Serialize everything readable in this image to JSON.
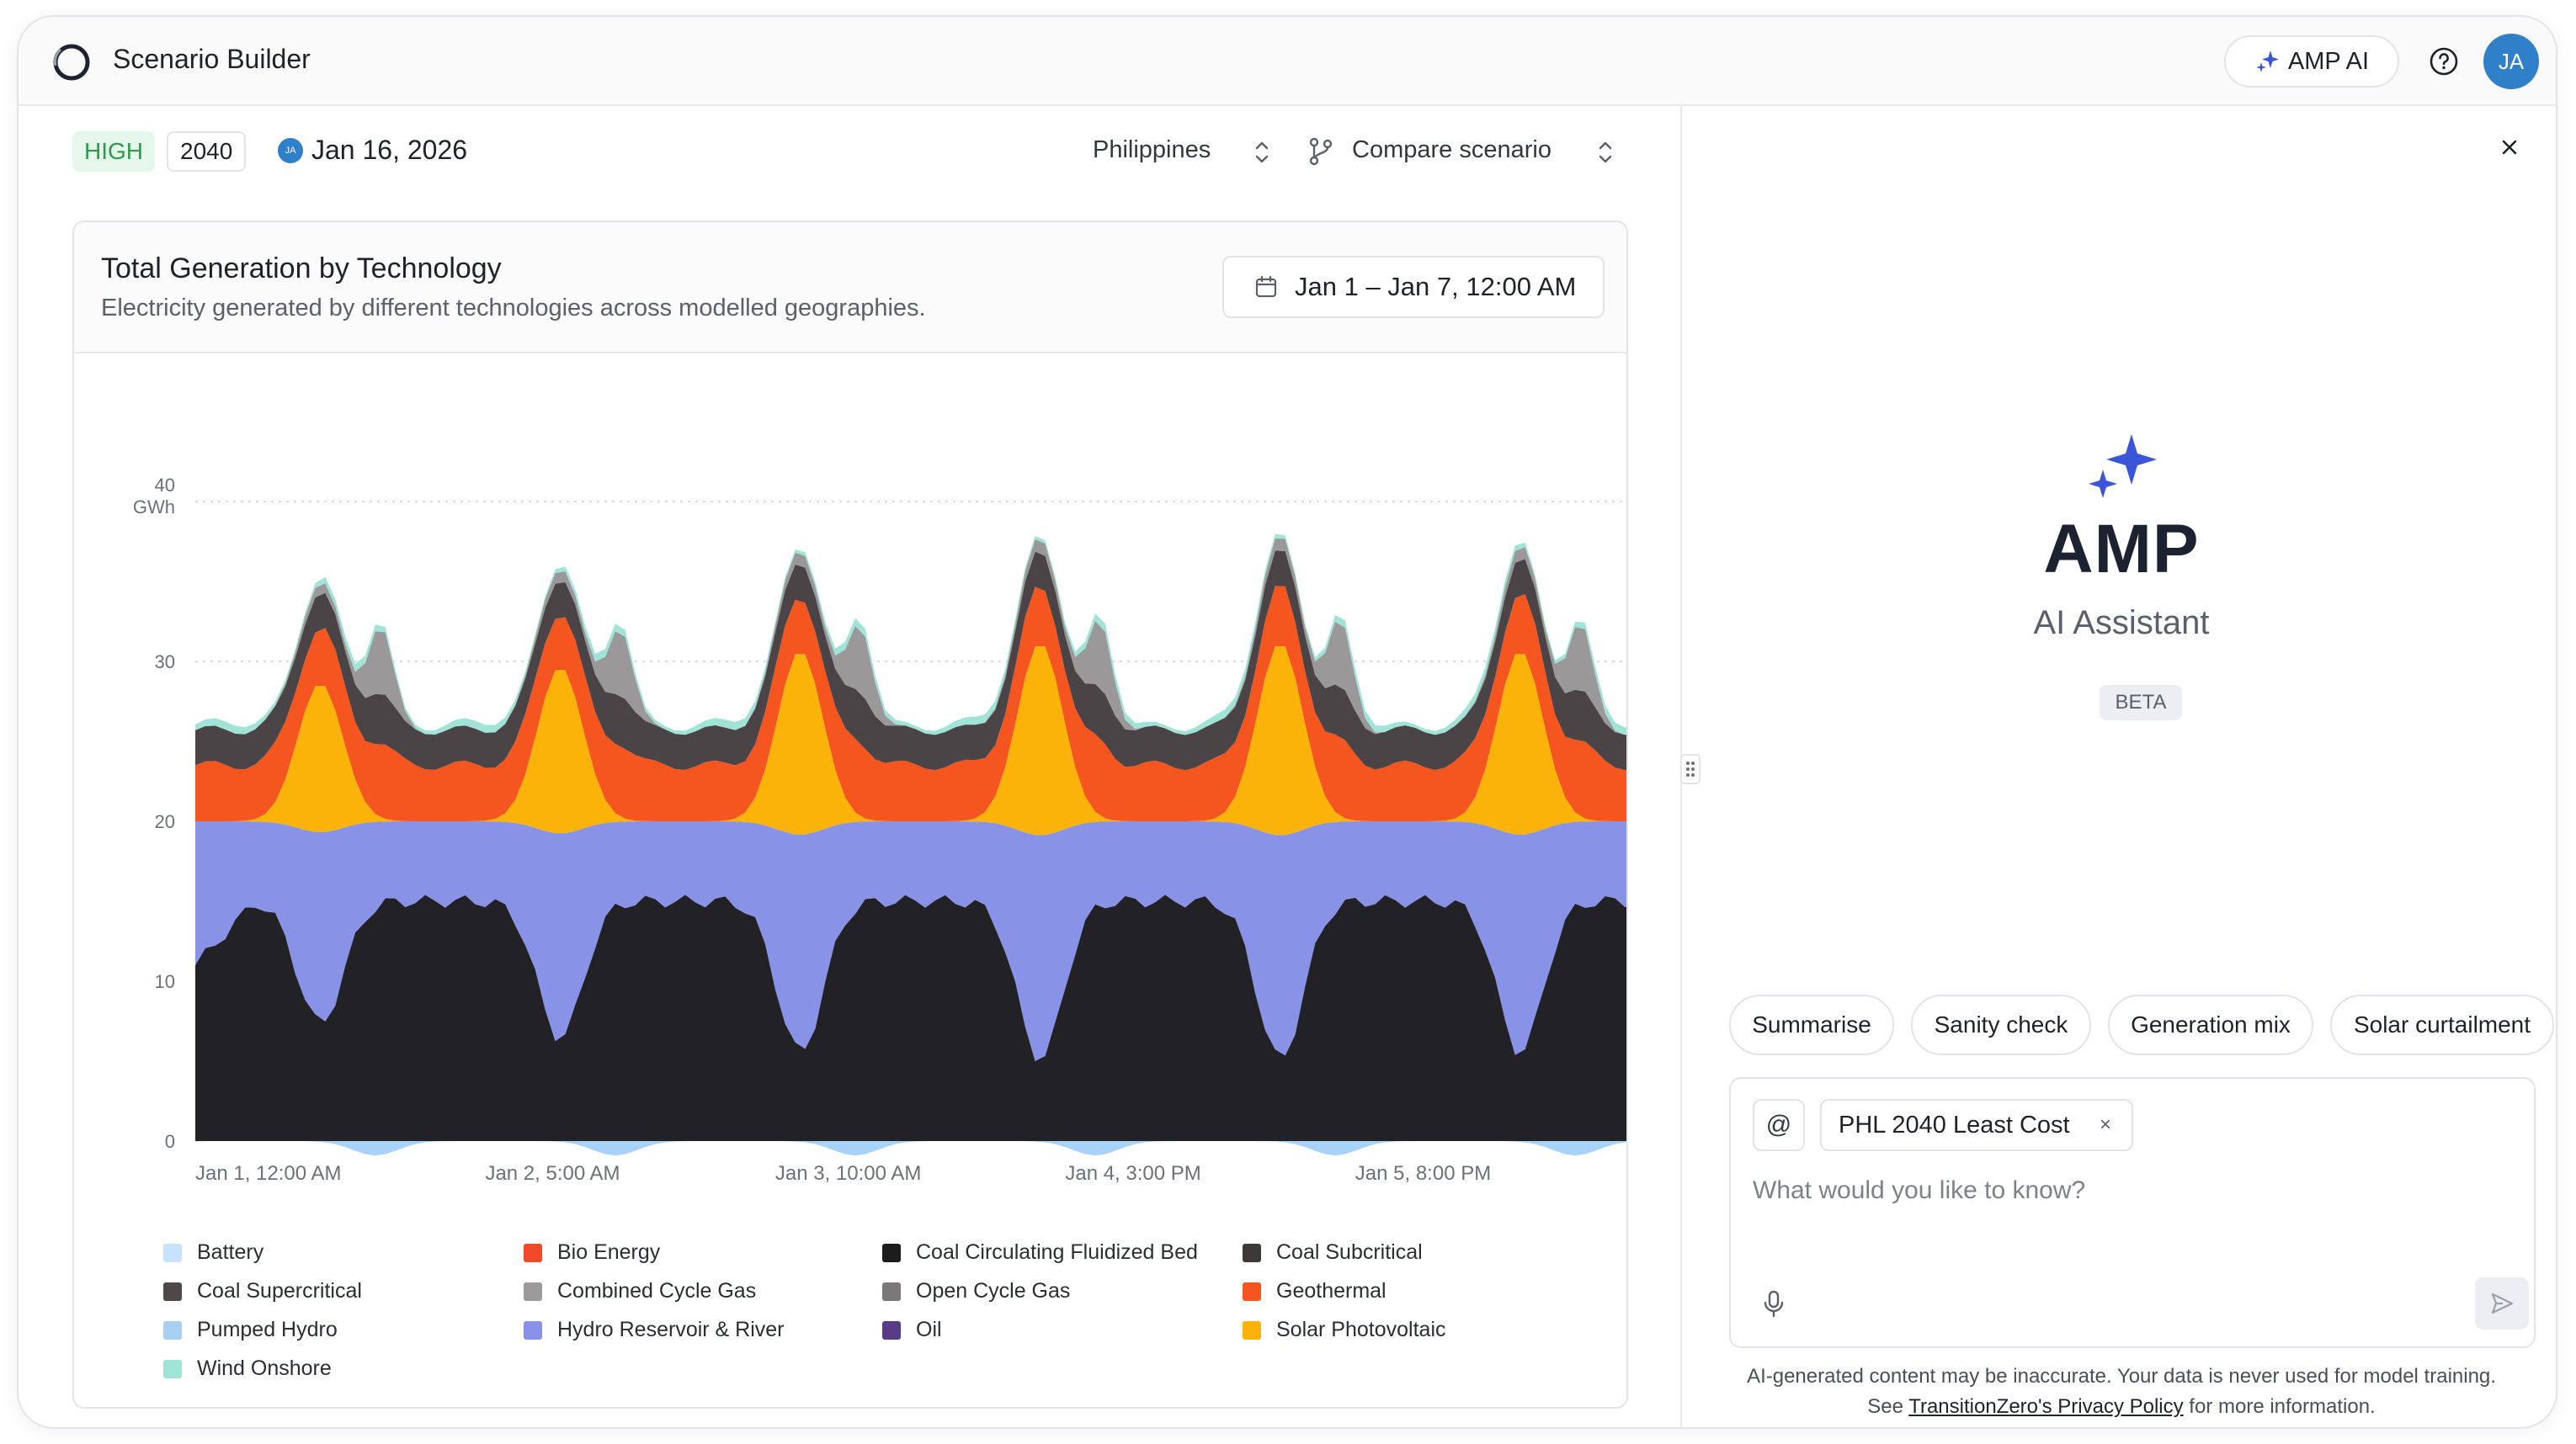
{
  "header": {
    "app_title": "Scenario Builder",
    "ai_button_label": "AMP AI",
    "avatar_initials": "JA",
    "icons": [
      "logo-ring",
      "sparkle-icon",
      "help-icon"
    ]
  },
  "scenario_bar": {
    "level_badge": "HIGH",
    "year_badge": "2040",
    "author_initials": "JA",
    "date": "Jan 16, 2026",
    "country": "Philippines",
    "compare_label": "Compare scenario"
  },
  "card": {
    "title": "Total Generation by Technology",
    "subtitle": "Electricity generated by different technologies across modelled geographies.",
    "range_label": "Jan 1 – Jan 7, 12:00 AM"
  },
  "chart_data": {
    "type": "area",
    "stacked": true,
    "y_unit": "GWh",
    "ylim": [
      0,
      40
    ],
    "y_ticks": [
      "0",
      "10",
      "20",
      "30",
      "40"
    ],
    "x_tick_labels": [
      "Jan 1, 12:00 AM",
      "Jan 2, 5:00 AM",
      "Jan 3, 10:00 AM",
      "Jan 4, 3:00 PM",
      "Jan 5, 8:00 PM"
    ],
    "x_tick_hours": [
      0,
      29,
      58,
      87,
      116
    ],
    "x_hours_range": [
      0,
      147
    ],
    "grid": "horizontal dotted",
    "legend_position": "bottom",
    "series": [
      {
        "name": "Coal Circulating Fluidized Bed",
        "color": "#222226",
        "approx": "~15 GWh baseline with dips to ~6 GWh during daytime peaks"
      },
      {
        "name": "Hydro Reservoir & River",
        "color": "#8892e6",
        "approx": "fills to ~20 GWh cumulative at night"
      },
      {
        "name": "Solar Photovoltaic",
        "color": "#fbb209",
        "approx": "daily peaks reaching ~31–33 GWh cumulative"
      },
      {
        "name": "Geothermal",
        "color": "#f5561f",
        "approx": "top of band ~24 GWh at night"
      },
      {
        "name": "Coal Subcritical",
        "color": "#4a4446",
        "approx": "top of band ~26 GWh"
      },
      {
        "name": "Combined Cycle Gas",
        "color": "#9a9898",
        "approx": "evening peaks"
      },
      {
        "name": "Battery",
        "color": "#a8d2f8",
        "approx": "small below-zero discharge bands each day"
      },
      {
        "name": "Wind Onshore",
        "color": "#a0e4d8",
        "approx": "thin top band"
      }
    ],
    "legend": [
      {
        "name": "Battery",
        "color": "#c8e2fb"
      },
      {
        "name": "Bio Energy",
        "color": "#f04a2a"
      },
      {
        "name": "Coal Circulating Fluidized Bed",
        "color": "#1c1c1f"
      },
      {
        "name": "Coal Subcritical",
        "color": "#3d3939"
      },
      {
        "name": "Coal Supercritical",
        "color": "#4e4848"
      },
      {
        "name": "Combined Cycle Gas",
        "color": "#9c9a9a"
      },
      {
        "name": "Open Cycle Gas",
        "color": "#7a7878"
      },
      {
        "name": "Geothermal",
        "color": "#f5561f"
      },
      {
        "name": "Pumped Hydro",
        "color": "#a8d0f2"
      },
      {
        "name": "Hydro Reservoir & River",
        "color": "#8892e6"
      },
      {
        "name": "Oil",
        "color": "#5b3b86"
      },
      {
        "name": "Solar Photovoltaic",
        "color": "#fbb209"
      },
      {
        "name": "Wind Onshore",
        "color": "#a0e4d8"
      }
    ]
  },
  "assistant": {
    "title": "AMP",
    "subtitle": "AI Assistant",
    "badge": "BETA",
    "suggestions": [
      "Summarise",
      "Sanity check",
      "Generation mix",
      "Solar curtailment"
    ],
    "context_chip": "PHL 2040 Least Cost",
    "context_chip_remove": "×",
    "at_symbol": "@",
    "input_placeholder": "What would you like to know?",
    "disclaimer_line1": "AI-generated content may be inaccurate. Your data is never used for model training.",
    "disclaimer_pre": "See ",
    "disclaimer_link": "TransitionZero's Privacy Policy",
    "disclaimer_post": " for more information."
  }
}
